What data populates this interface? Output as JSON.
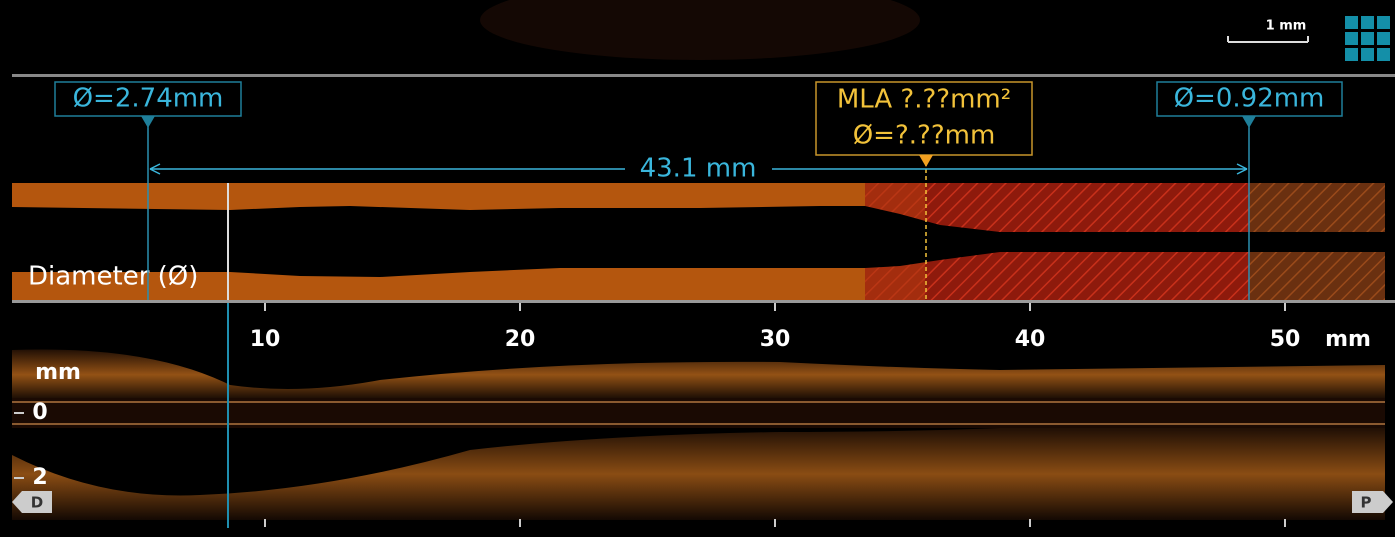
{
  "scale_bar": {
    "label": "1 mm"
  },
  "markers": {
    "proximal_ref": "Ø=2.74mm",
    "mla_area": "MLA ?.??mm²",
    "mla_diameter": "Ø=?.??mm",
    "distal_ref": "Ø=0.92mm",
    "length": "43.1 mm"
  },
  "diameter_panel": {
    "label": "Diameter (Ø)"
  },
  "length_axis": {
    "ticks": [
      10,
      20,
      30,
      40,
      50
    ],
    "unit": "mm"
  },
  "depth_axis": {
    "ticks": [
      0,
      2
    ],
    "unit": "mm"
  },
  "buttons": {
    "distal": "D",
    "proximal": "P"
  }
}
